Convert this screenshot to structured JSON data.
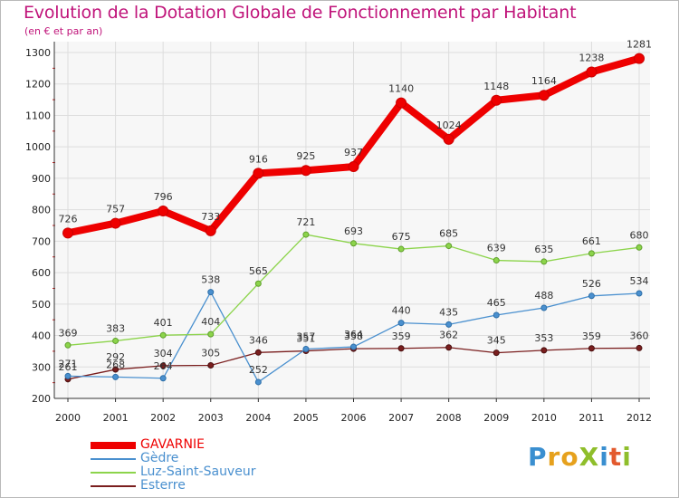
{
  "title": "Evolution de la Dotation Globale de Fonctionnement par Habitant",
  "subtitle": "(en € et par an)",
  "logo": {
    "text": "ProXiti",
    "letters": [
      {
        "ch": "P",
        "color": "#3a8fd0"
      },
      {
        "ch": "r",
        "color": "#e6a11d"
      },
      {
        "ch": "o",
        "color": "#e6a11d"
      },
      {
        "ch": "X",
        "color": "#8fbe2b"
      },
      {
        "ch": "i",
        "color": "#3a8fd0"
      },
      {
        "ch": "t",
        "color": "#e35a2e"
      },
      {
        "ch": "i",
        "color": "#8fbe2b"
      }
    ]
  },
  "chart_data": {
    "type": "line",
    "title": "Evolution de la Dotation Globale de Fonctionnement par Habitant",
    "subtitle": "(en € et par an)",
    "x": [
      "2000",
      "2001",
      "2002",
      "2003",
      "2004",
      "2005",
      "2006",
      "2007",
      "2008",
      "2009",
      "2010",
      "2011",
      "2012"
    ],
    "ylim": [
      200,
      1300
    ],
    "yticks": [
      200,
      300,
      400,
      500,
      600,
      700,
      800,
      900,
      1000,
      1100,
      1200,
      1300
    ],
    "grid": true,
    "legend_position": "bottom-left",
    "series": [
      {
        "name": "GAVARNIE",
        "color": "#ee0000",
        "values": [
          726,
          757,
          796,
          733,
          916,
          925,
          937,
          1140,
          1024,
          1148,
          1164,
          1238,
          1281
        ],
        "labels": [
          "726",
          "757",
          "796",
          "733",
          "916",
          "925",
          "937",
          "1140",
          "1024",
          "1148",
          "1164",
          "1238",
          "1281"
        ]
      },
      {
        "name": "Gèdre",
        "color": "#4a90cf",
        "values": [
          271,
          268,
          264,
          538,
          252,
          357,
          364,
          440,
          435,
          465,
          488,
          526,
          534
        ],
        "labels": [
          "271",
          "268",
          "264",
          "538",
          "252",
          "357",
          "364",
          "440",
          "435",
          "465",
          "488",
          "526",
          "534"
        ]
      },
      {
        "name": "Luz-Saint-Sauveur",
        "color": "#8cd44b",
        "values": [
          369,
          383,
          401,
          404,
          565,
          721,
          693,
          675,
          685,
          639,
          635,
          661,
          680
        ],
        "labels": [
          "369",
          "383",
          "401",
          "404",
          "565",
          "721",
          "693",
          "675",
          "685",
          "639",
          "635",
          "661",
          "680"
        ]
      },
      {
        "name": "Esterre",
        "color": "#7a1e1e",
        "values": [
          261,
          292,
          304,
          305,
          346,
          351,
          358,
          359,
          362,
          345,
          353,
          359,
          360
        ],
        "labels": [
          "261",
          "292",
          "304",
          "305",
          "346",
          "351",
          "358",
          "359",
          "362",
          "345",
          "353",
          "359",
          "360"
        ]
      }
    ]
  },
  "legend": [
    {
      "label": "GAVARNIE",
      "color": "#ee0000",
      "text_color": "#ee0000"
    },
    {
      "label": "Gèdre",
      "color": "#4a90cf",
      "text_color": "#4a90cf"
    },
    {
      "label": "Luz-Saint-Sauveur",
      "color": "#8cd44b",
      "text_color": "#4a90cf"
    },
    {
      "label": "Esterre",
      "color": "#7a1e1e",
      "text_color": "#4a90cf"
    }
  ]
}
